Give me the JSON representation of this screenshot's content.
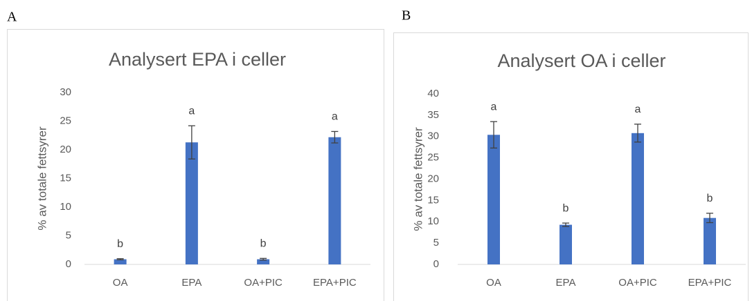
{
  "chart_data": [
    {
      "type": "bar",
      "panel_label": "A",
      "title": "Analysert EPA i celler",
      "ylabel": "% av totale fettsyrer",
      "categories": [
        "OA",
        "EPA",
        "OA+PIC",
        "EPA+PIC"
      ],
      "values": [
        0.9,
        21.3,
        0.9,
        22.2
      ],
      "errors": [
        0.1,
        2.9,
        0.15,
        1.0
      ],
      "letters": [
        "b",
        "a",
        "b",
        "a"
      ],
      "color": "#4472c4",
      "ylim": [
        0,
        30
      ],
      "yticks": [
        0,
        5,
        10,
        15,
        20,
        25,
        30
      ],
      "grid": false
    },
    {
      "type": "bar",
      "panel_label": "B",
      "title": "Analysert OA i celler",
      "ylabel": "% av totale fettsyrer",
      "categories": [
        "OA",
        "EPA",
        "OA+PIC",
        "EPA+PIC"
      ],
      "values": [
        30.4,
        9.3,
        30.8,
        10.9
      ],
      "errors": [
        3.1,
        0.4,
        2.1,
        1.1
      ],
      "letters": [
        "a",
        "b",
        "a",
        "b"
      ],
      "color": "#4472c4",
      "ylim": [
        0,
        40
      ],
      "yticks": [
        0,
        5,
        10,
        15,
        20,
        25,
        30,
        35,
        40
      ],
      "grid": false
    }
  ]
}
